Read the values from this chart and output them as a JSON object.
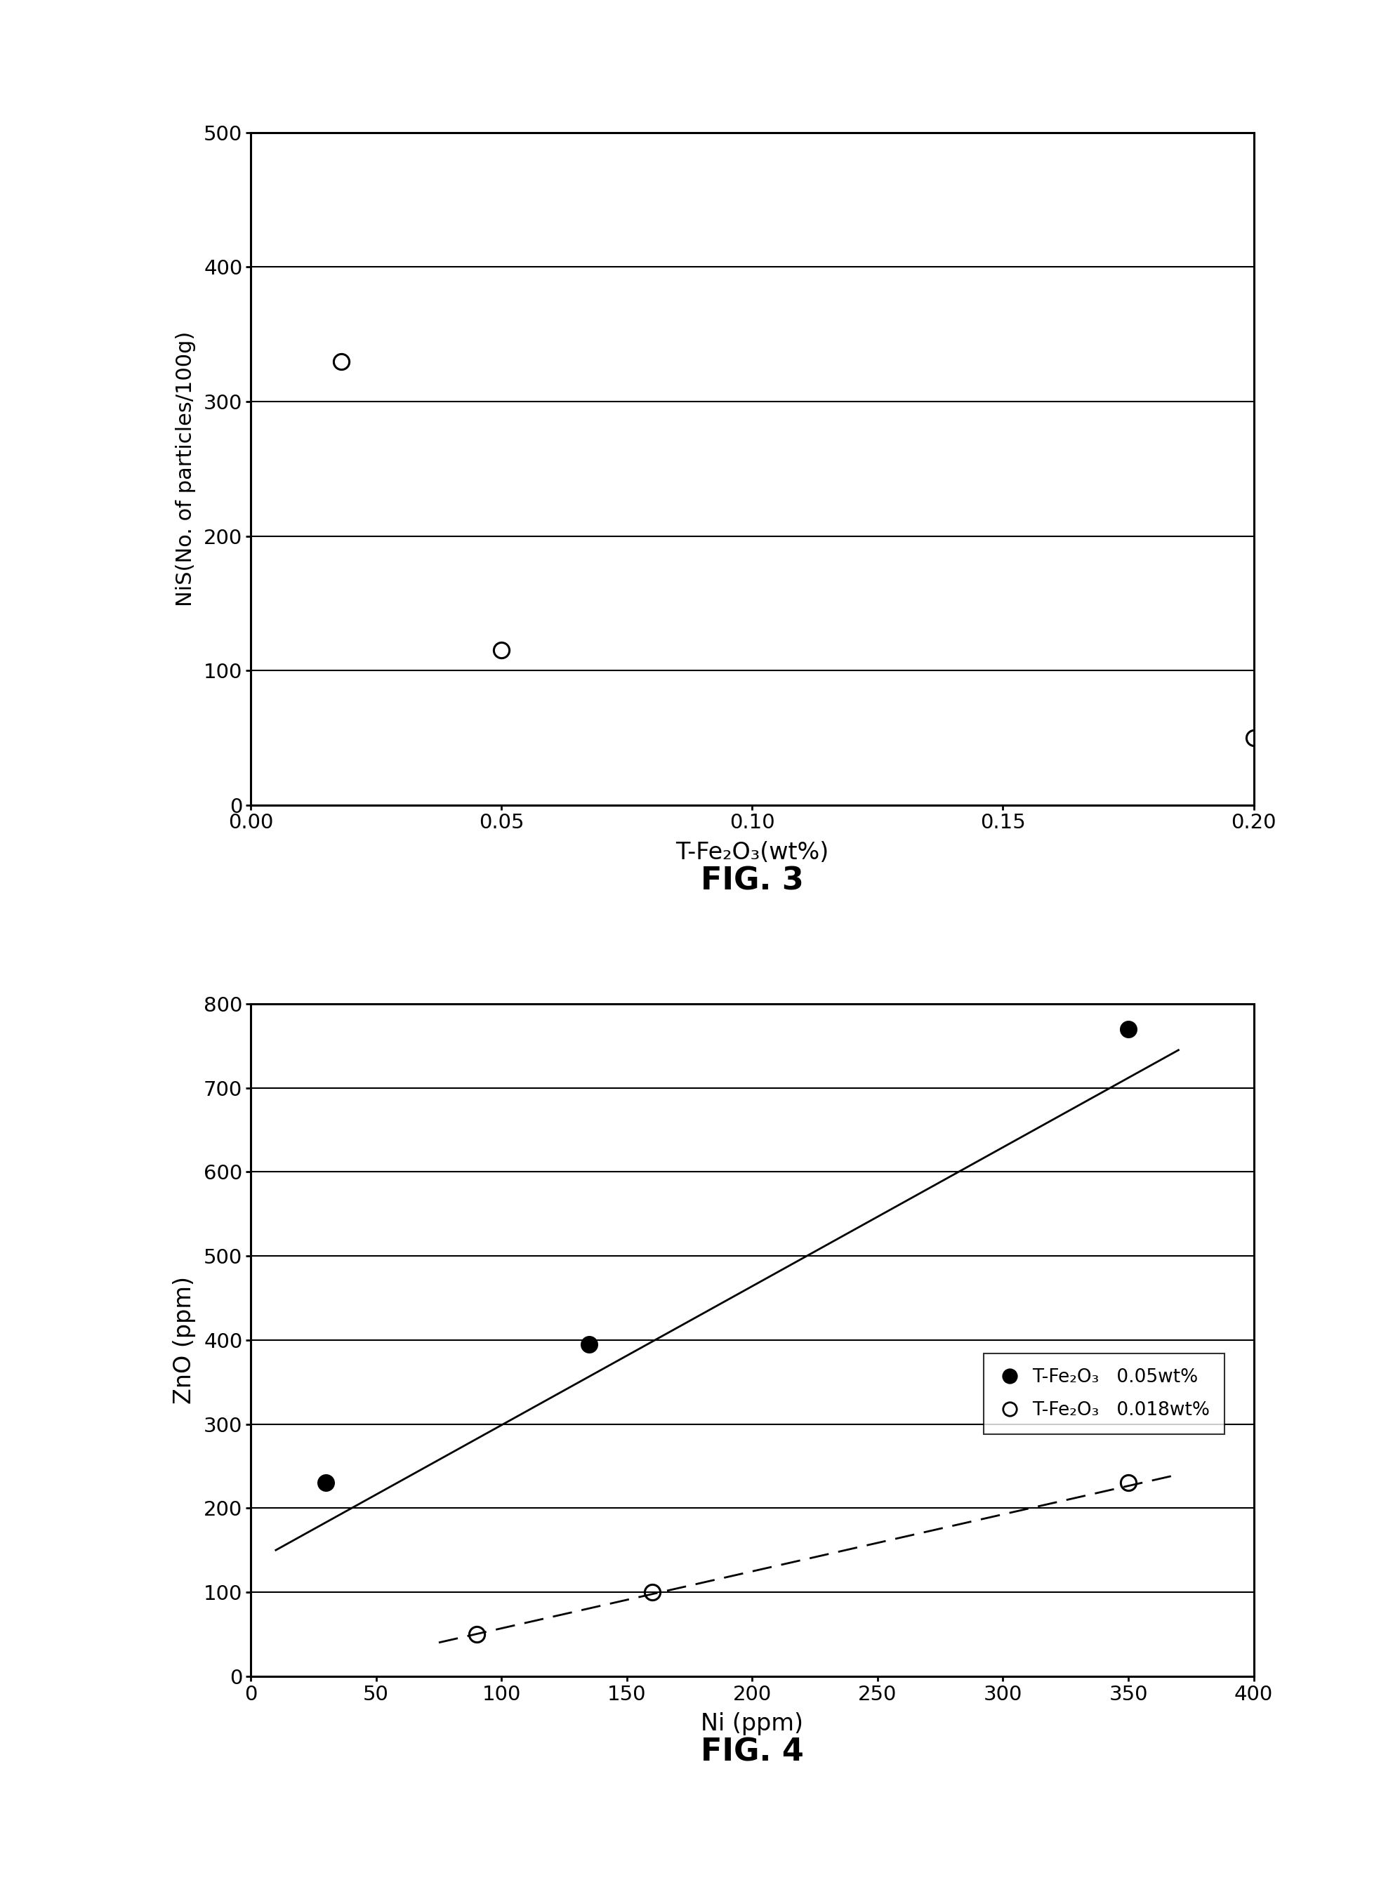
{
  "fig3": {
    "title": "FIG. 3",
    "xlabel": "T-Fe₂O₃(wt%)",
    "ylabel": "NiS(No. of particles/100g)",
    "xlim": [
      0.0,
      0.2
    ],
    "ylim": [
      0,
      500
    ],
    "xticks": [
      0.0,
      0.05,
      0.1,
      0.15,
      0.2
    ],
    "yticks": [
      0,
      100,
      200,
      300,
      400,
      500
    ],
    "data_x": [
      0.018,
      0.05,
      0.2
    ],
    "data_y": [
      330,
      115,
      50
    ],
    "curve_A": 20900,
    "curve_n": -1.032
  },
  "fig4": {
    "title": "FIG. 4",
    "xlabel": "Ni (ppm)",
    "ylabel": "ZnO (ppm)",
    "xlim": [
      0,
      400
    ],
    "ylim": [
      0,
      800
    ],
    "xticks": [
      0,
      50,
      100,
      150,
      200,
      250,
      300,
      350,
      400
    ],
    "yticks": [
      0,
      100,
      200,
      300,
      400,
      500,
      600,
      700,
      800
    ],
    "series1": {
      "label": "T-Fe₂O₃   0.05wt%",
      "data_x": [
        30,
        135,
        350
      ],
      "data_y": [
        230,
        395,
        770
      ],
      "line_x": [
        10,
        370
      ],
      "line_y": [
        150,
        745
      ],
      "linestyle": "solid"
    },
    "series2": {
      "label": "T-Fe₂O₃   0.018wt%",
      "data_x": [
        90,
        160,
        350
      ],
      "data_y": [
        50,
        100,
        230
      ],
      "line_x": [
        75,
        370
      ],
      "line_y": [
        40,
        240
      ],
      "linestyle": "dashed"
    }
  },
  "background_color": "#ffffff",
  "text_color": "#000000"
}
